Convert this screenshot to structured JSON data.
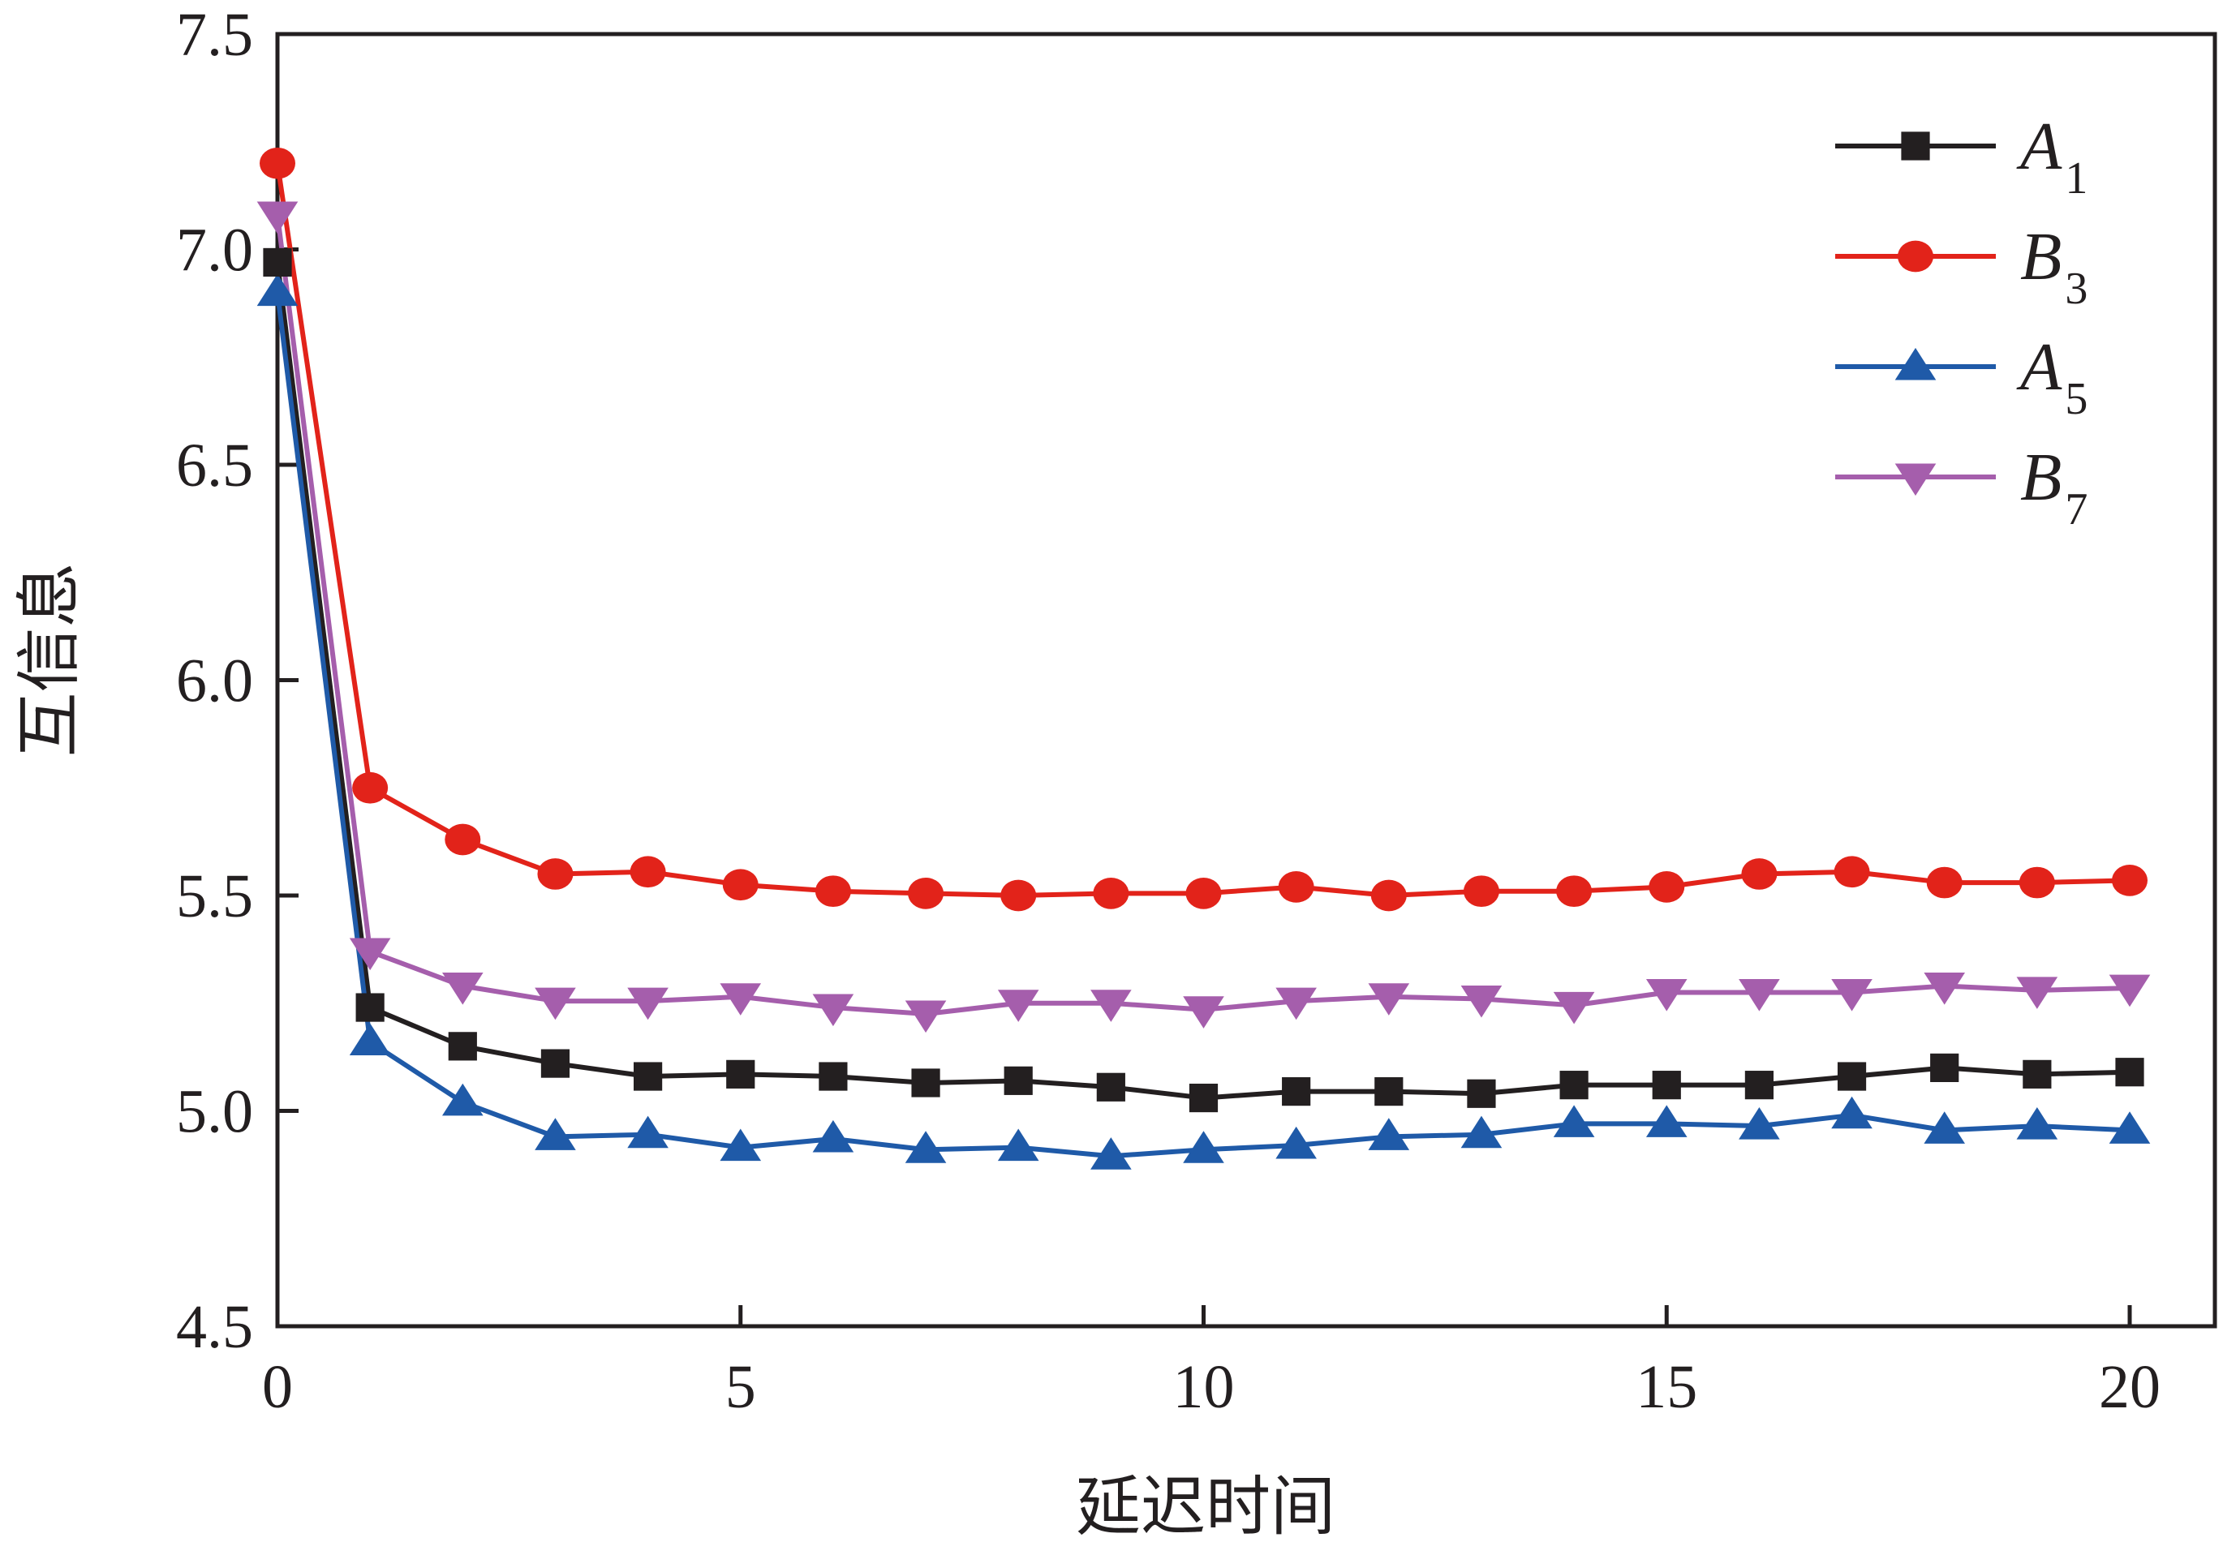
{
  "chart_data": {
    "type": "line",
    "title": "",
    "xlabel": "延迟时间",
    "ylabel": "互信息",
    "xlim": [
      0,
      20
    ],
    "ylim": [
      4.5,
      7.5
    ],
    "x_ticks": [
      "0",
      "5",
      "10",
      "15",
      "20"
    ],
    "y_ticks": [
      "4.5",
      "5.0",
      "5.5",
      "6.0",
      "6.5",
      "7.0",
      "7.5"
    ],
    "grid": false,
    "legend_position": "top-right",
    "x": [
      0,
      1,
      2,
      3,
      4,
      5,
      6,
      7,
      8,
      9,
      10,
      11,
      12,
      13,
      14,
      15,
      16,
      17,
      18,
      19,
      20
    ],
    "series": [
      {
        "name": "A1",
        "label": "A",
        "sub": "1",
        "color": "#231f20",
        "marker": "square",
        "values": [
          6.97,
          5.24,
          5.15,
          5.11,
          5.08,
          5.085,
          5.08,
          5.065,
          5.07,
          5.055,
          5.03,
          5.045,
          5.045,
          5.04,
          5.06,
          5.06,
          5.06,
          5.08,
          5.1,
          5.085,
          5.09
        ]
      },
      {
        "name": "B3",
        "label": "B",
        "sub": "3",
        "color": "#e2231a",
        "marker": "circle",
        "values": [
          7.2,
          5.75,
          5.63,
          5.55,
          5.555,
          5.525,
          5.51,
          5.505,
          5.5,
          5.505,
          5.505,
          5.52,
          5.5,
          5.51,
          5.51,
          5.52,
          5.55,
          5.555,
          5.53,
          5.53,
          5.535
        ]
      },
      {
        "name": "A5",
        "label": "A",
        "sub": "5",
        "color": "#1f5aa8",
        "marker": "triangle-up",
        "values": [
          6.9,
          5.16,
          5.02,
          4.94,
          4.945,
          4.915,
          4.935,
          4.91,
          4.915,
          4.895,
          4.91,
          4.92,
          4.94,
          4.945,
          4.97,
          4.97,
          4.965,
          4.99,
          4.955,
          4.965,
          4.955
        ]
      },
      {
        "name": "B7",
        "label": "B",
        "sub": "7",
        "color": "#a55eac",
        "marker": "triangle-down",
        "values": [
          7.08,
          5.37,
          5.29,
          5.255,
          5.255,
          5.265,
          5.24,
          5.225,
          5.25,
          5.25,
          5.235,
          5.255,
          5.265,
          5.26,
          5.245,
          5.275,
          5.275,
          5.275,
          5.29,
          5.28,
          5.285
        ]
      }
    ]
  }
}
